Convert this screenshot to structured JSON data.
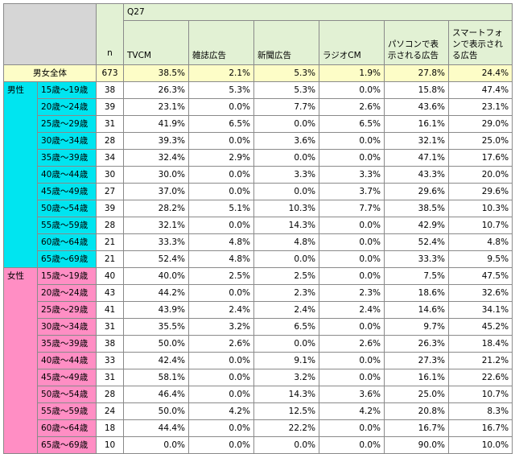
{
  "question": "Q27",
  "n_label": "n",
  "columns": [
    "TVCM",
    "雑誌広告",
    "新聞広告",
    "ラジオCM",
    "パソコンで表示される広告",
    "スマートフォンで表示される広告"
  ],
  "total": {
    "label": "男女全体",
    "n": "673",
    "values": [
      "38.5%",
      "2.1%",
      "5.3%",
      "1.9%",
      "27.8%",
      "24.4%"
    ]
  },
  "male": {
    "label": "男性",
    "rows": [
      {
        "age": "15歳～19歳",
        "n": "38",
        "values": [
          "26.3%",
          "5.3%",
          "5.3%",
          "0.0%",
          "15.8%",
          "47.4%"
        ]
      },
      {
        "age": "20歳～24歳",
        "n": "39",
        "values": [
          "23.1%",
          "0.0%",
          "7.7%",
          "2.6%",
          "43.6%",
          "23.1%"
        ]
      },
      {
        "age": "25歳～29歳",
        "n": "31",
        "values": [
          "41.9%",
          "6.5%",
          "0.0%",
          "6.5%",
          "16.1%",
          "29.0%"
        ]
      },
      {
        "age": "30歳～34歳",
        "n": "28",
        "values": [
          "39.3%",
          "0.0%",
          "3.6%",
          "0.0%",
          "32.1%",
          "25.0%"
        ]
      },
      {
        "age": "35歳～39歳",
        "n": "34",
        "values": [
          "32.4%",
          "2.9%",
          "0.0%",
          "0.0%",
          "47.1%",
          "17.6%"
        ]
      },
      {
        "age": "40歳～44歳",
        "n": "30",
        "values": [
          "30.0%",
          "0.0%",
          "3.3%",
          "3.3%",
          "43.3%",
          "20.0%"
        ]
      },
      {
        "age": "45歳～49歳",
        "n": "27",
        "values": [
          "37.0%",
          "0.0%",
          "0.0%",
          "3.7%",
          "29.6%",
          "29.6%"
        ]
      },
      {
        "age": "50歳～54歳",
        "n": "39",
        "values": [
          "28.2%",
          "5.1%",
          "10.3%",
          "7.7%",
          "38.5%",
          "10.3%"
        ]
      },
      {
        "age": "55歳～59歳",
        "n": "28",
        "values": [
          "32.1%",
          "0.0%",
          "14.3%",
          "0.0%",
          "42.9%",
          "10.7%"
        ]
      },
      {
        "age": "60歳～64歳",
        "n": "21",
        "values": [
          "33.3%",
          "4.8%",
          "4.8%",
          "0.0%",
          "52.4%",
          "4.8%"
        ]
      },
      {
        "age": "65歳～69歳",
        "n": "21",
        "values": [
          "52.4%",
          "4.8%",
          "0.0%",
          "0.0%",
          "33.3%",
          "9.5%"
        ]
      }
    ]
  },
  "female": {
    "label": "女性",
    "rows": [
      {
        "age": "15歳～19歳",
        "n": "40",
        "values": [
          "40.0%",
          "2.5%",
          "2.5%",
          "0.0%",
          "7.5%",
          "47.5%"
        ]
      },
      {
        "age": "20歳～24歳",
        "n": "43",
        "values": [
          "44.2%",
          "0.0%",
          "2.3%",
          "2.3%",
          "18.6%",
          "32.6%"
        ]
      },
      {
        "age": "25歳～29歳",
        "n": "41",
        "values": [
          "43.9%",
          "2.4%",
          "2.4%",
          "2.4%",
          "14.6%",
          "34.1%"
        ]
      },
      {
        "age": "30歳～34歳",
        "n": "31",
        "values": [
          "35.5%",
          "3.2%",
          "6.5%",
          "0.0%",
          "9.7%",
          "45.2%"
        ]
      },
      {
        "age": "35歳～39歳",
        "n": "38",
        "values": [
          "50.0%",
          "2.6%",
          "0.0%",
          "2.6%",
          "26.3%",
          "18.4%"
        ]
      },
      {
        "age": "40歳～44歳",
        "n": "33",
        "values": [
          "42.4%",
          "0.0%",
          "9.1%",
          "0.0%",
          "27.3%",
          "21.2%"
        ]
      },
      {
        "age": "45歳～49歳",
        "n": "31",
        "values": [
          "58.1%",
          "0.0%",
          "3.2%",
          "0.0%",
          "16.1%",
          "22.6%"
        ]
      },
      {
        "age": "50歳～54歳",
        "n": "28",
        "values": [
          "46.4%",
          "0.0%",
          "14.3%",
          "3.6%",
          "25.0%",
          "10.7%"
        ]
      },
      {
        "age": "55歳～59歳",
        "n": "24",
        "values": [
          "50.0%",
          "4.2%",
          "12.5%",
          "4.2%",
          "20.8%",
          "8.3%"
        ]
      },
      {
        "age": "60歳～64歳",
        "n": "18",
        "values": [
          "44.4%",
          "0.0%",
          "22.2%",
          "0.0%",
          "16.7%",
          "16.7%"
        ]
      },
      {
        "age": "65歳～69歳",
        "n": "10",
        "values": [
          "0.0%",
          "0.0%",
          "0.0%",
          "0.0%",
          "90.0%",
          "10.0%"
        ]
      }
    ]
  }
}
